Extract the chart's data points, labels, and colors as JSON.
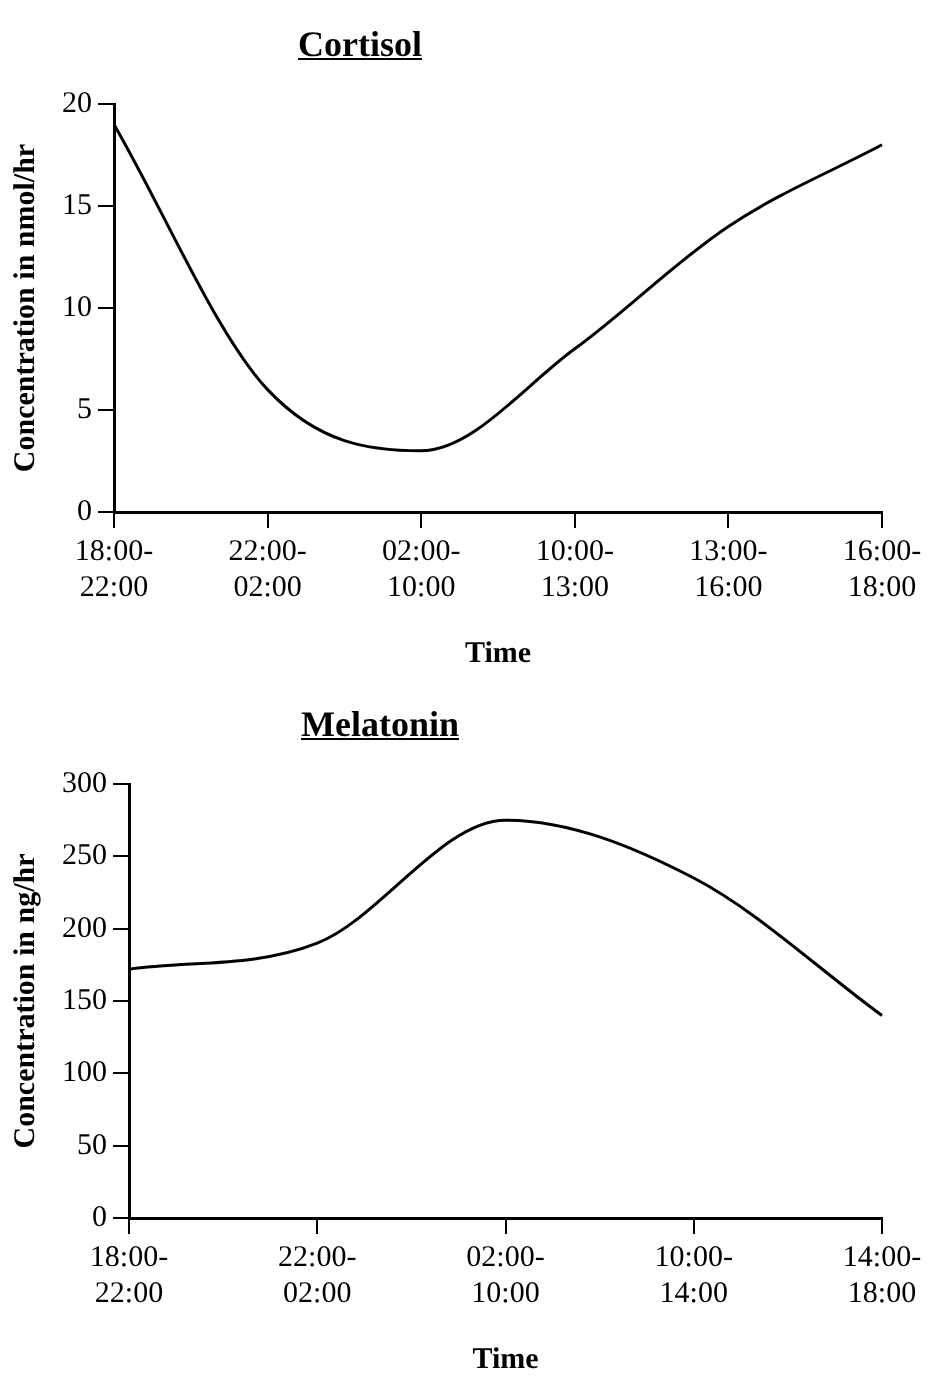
{
  "chart_data": [
    {
      "type": "line",
      "title": "Cortisol",
      "xlabel": "Time",
      "ylabel": "Concentration in nmol/hr",
      "categories": [
        [
          "18:00-",
          "22:00"
        ],
        [
          "22:00-",
          "02:00"
        ],
        [
          "02:00-",
          "10:00"
        ],
        [
          "10:00-",
          "13:00"
        ],
        [
          "13:00-",
          "16:00"
        ],
        [
          "16:00-",
          "18:00"
        ]
      ],
      "series": [
        {
          "color": "#000000",
          "values": [
            19,
            6,
            3,
            8,
            14,
            18
          ]
        }
      ],
      "ylim": [
        0,
        20
      ],
      "yticks": [
        0,
        5,
        10,
        15,
        20
      ]
    },
    {
      "type": "line",
      "title": "Melatonin",
      "xlabel": "Time",
      "ylabel": "Concentration in ng/hr",
      "categories": [
        [
          "18:00-",
          "22:00"
        ],
        [
          "22:00-",
          "02:00"
        ],
        [
          "02:00-",
          "10:00"
        ],
        [
          "10:00-",
          "14:00"
        ],
        [
          "14:00-",
          "18:00"
        ]
      ],
      "series": [
        {
          "color": "#000000",
          "values": [
            172,
            190,
            275,
            235,
            140
          ]
        }
      ],
      "ylim": [
        0,
        300
      ],
      "yticks": [
        0,
        50,
        100,
        150,
        200,
        250,
        300
      ]
    }
  ]
}
